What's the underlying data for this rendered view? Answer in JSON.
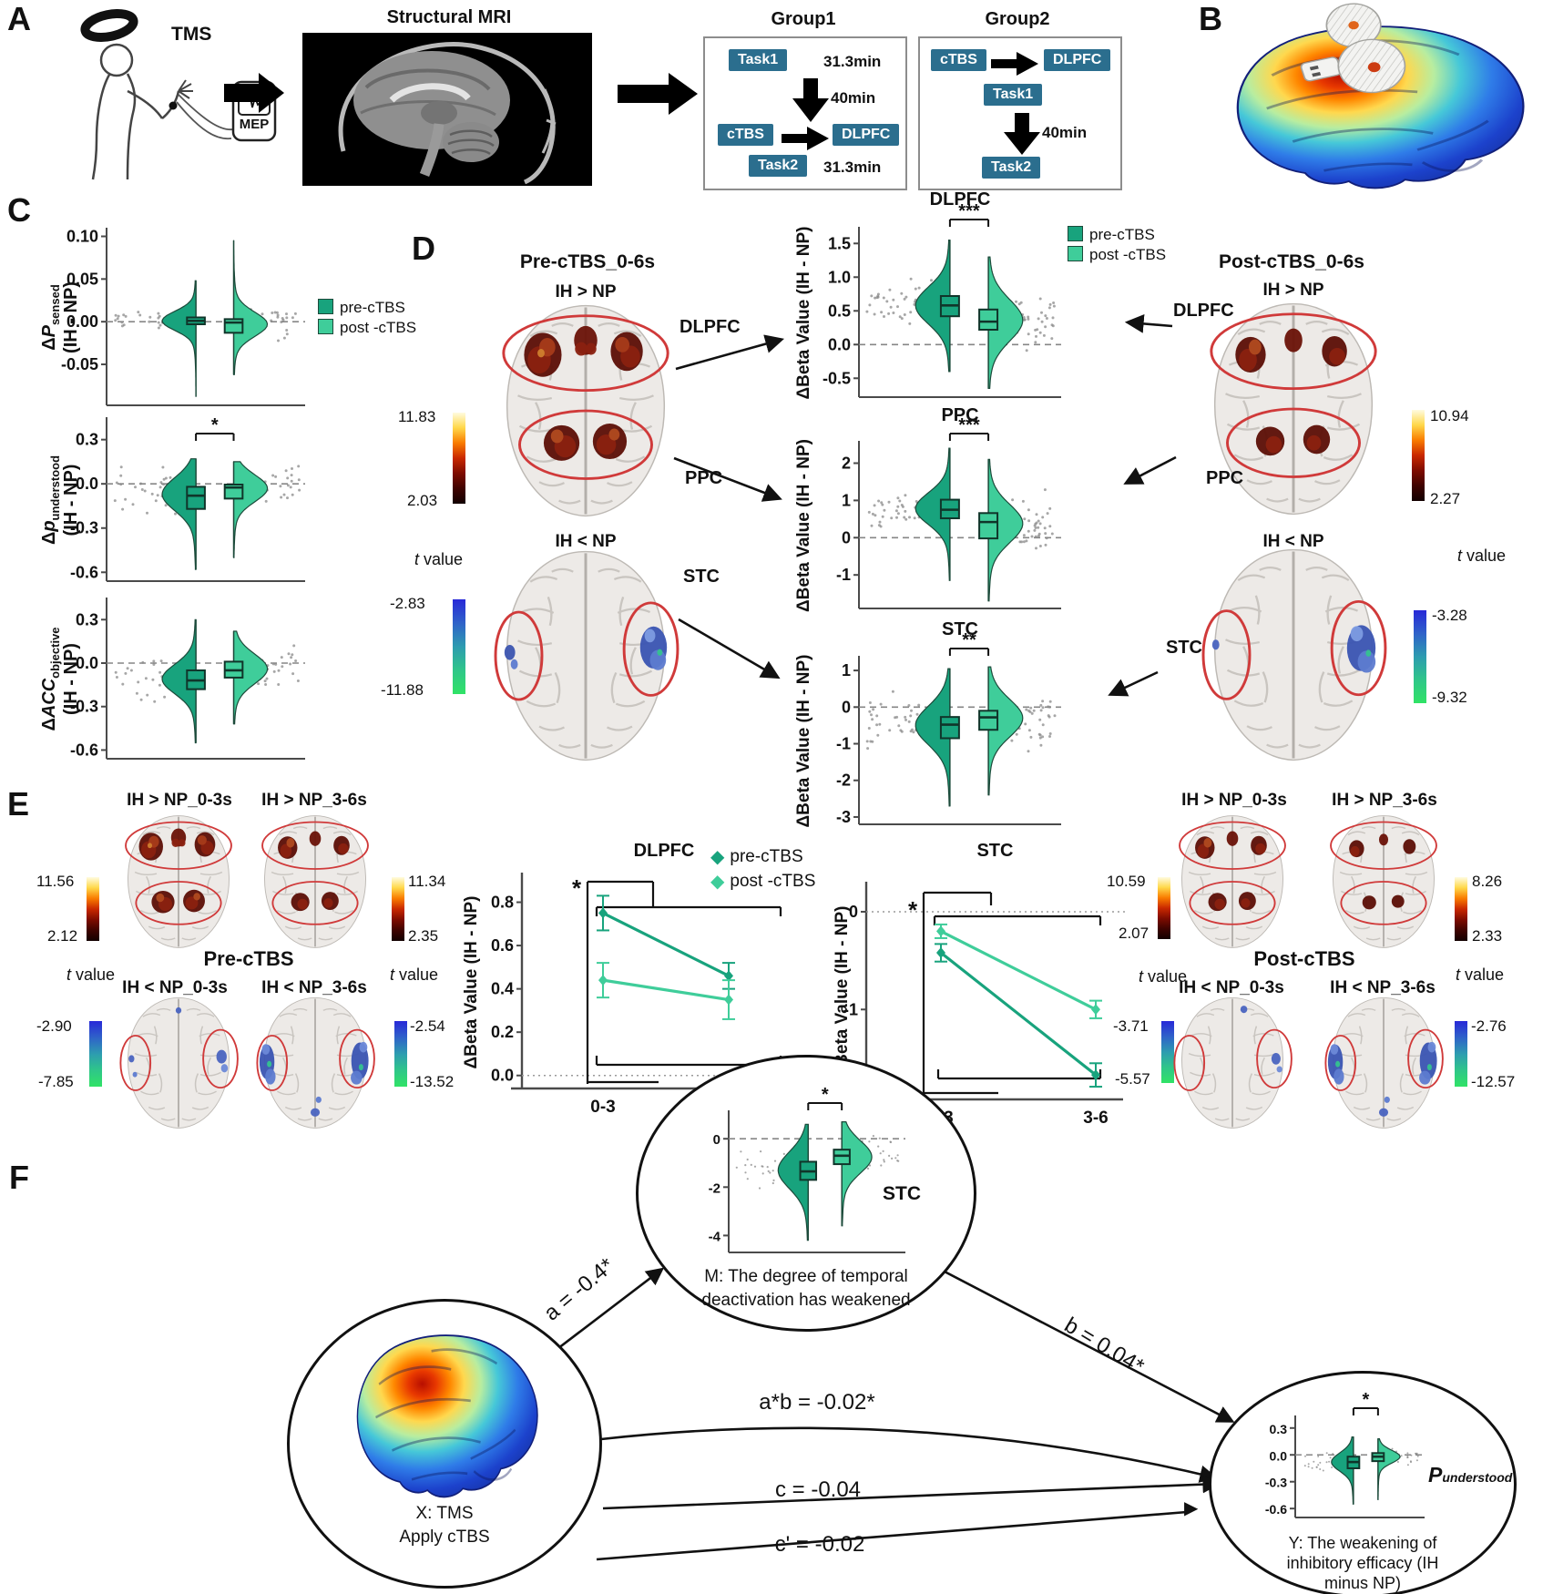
{
  "colors": {
    "pre": "#18a37d",
    "post": "#3fcd9a",
    "teal": "#2b6e8e",
    "hot_low": "#2b0000",
    "hot_high": "#fffbe0",
    "cool_low": "#30e366",
    "cool_high": "#2829d8",
    "red_circle": "#d03a3a"
  },
  "tvalue": {
    "t": "t",
    "rest": "value"
  },
  "legend": {
    "pre": "pre-cTBS",
    "post": "post -cTBS"
  },
  "panel_a": {
    "label": "A",
    "tms": "TMS",
    "mep": "MEP",
    "mri_title": "Structural MRI",
    "group1": {
      "title": "Group1",
      "task1": "Task1",
      "task1_duration": "31.3min",
      "interval": "40min",
      "ctbs": "cTBS",
      "target": "DLPFC",
      "task2": "Task2",
      "task2_duration": "31.3min"
    },
    "group2": {
      "title": "Group2",
      "ctbs": "cTBS",
      "target": "DLPFC",
      "task1": "Task1",
      "interval": "40min",
      "task2": "Task2"
    }
  },
  "panel_b": {
    "label": "B"
  },
  "panel_c": {
    "label": "C"
  },
  "panel_d": {
    "label": "D",
    "pre_title": "Pre-cTBS_0-6s",
    "post_title": "Post-cTBS_0-6s",
    "pos_contrast": "IH > NP",
    "neg_contrast": "IH < NP",
    "dlpfc": "DLPFC",
    "ppc": "PPC",
    "stc": "STC",
    "cb": {
      "pre_hot": {
        "max": "11.83",
        "min": "2.03"
      },
      "pre_cool": {
        "max": "-2.83",
        "min": "-11.88"
      },
      "post_hot": {
        "max": "10.94",
        "min": "2.27"
      },
      "post_cool": {
        "max": "-3.28",
        "min": "-9.32"
      }
    }
  },
  "panel_e": {
    "label": "E",
    "pre_title": "Pre-cTBS",
    "post_title": "Post-cTBS",
    "pos_early": "IH > NP_0-3s",
    "pos_late": "IH > NP_3-6s",
    "neg_early": "IH < NP_0-3s",
    "neg_late": "IH < NP_3-6s",
    "cb": {
      "e1": {
        "max": "11.56",
        "min": "2.12"
      },
      "e2": {
        "max": "11.34",
        "min": "2.35"
      },
      "e3": {
        "max": "-2.90",
        "min": "-7.85"
      },
      "e4": {
        "max": "-2.54",
        "min": "-13.52"
      },
      "m1": {
        "max": "10.59",
        "min": "2.07"
      },
      "m2": {
        "max": "-3.71",
        "min": "-5.57"
      },
      "r1": {
        "max": "8.26",
        "min": "2.33"
      },
      "r2": {
        "max": "-2.76",
        "min": "-12.57"
      }
    }
  },
  "panel_f": {
    "label": "F",
    "x_caption_1": "X: TMS",
    "x_caption_2": "Apply cTBS",
    "m_caption_1": "M: The degree of temporal",
    "m_caption_2": "deactivation has weakened",
    "m_region": "STC",
    "y_caption_1": "Y: The weakening of",
    "y_caption_2": "inhibitory efficacy (IH",
    "y_caption_3": "minus NP)",
    "y_var": "P",
    "y_var_sub": "understood",
    "paths": {
      "a": "a = -0.4*",
      "b": "b = 0.04*",
      "ab": "a*b = -0.02*",
      "c": "c = -0.04",
      "cprime": "c' = -0.02",
      "cprime_head": "▶"
    }
  },
  "chart_data": [
    {
      "id": "c1",
      "type": "violin",
      "title": "",
      "sig": "",
      "ylabel": {
        "l1": [
          {
            "t": "Δ"
          },
          {
            "t": "P",
            "i": true
          }
        ],
        "sub": "sensed",
        "l2": "(IH - NP)"
      },
      "ylim": [
        -0.098,
        0.108
      ],
      "yticks": [
        {
          "v": 0.1,
          "t": "0.10"
        },
        {
          "v": 0.05,
          "t": "0.05"
        },
        {
          "v": 0.0,
          "t": "0.00"
        },
        {
          "v": -0.05,
          "t": "-0.05"
        }
      ],
      "groups": {
        "pre": {
          "mean": 0.001,
          "sd": 0.011,
          "q1": -0.003,
          "q3": 0.005,
          "median": 0.001,
          "tail": [
            -0.088,
            0.048
          ]
        },
        "post": {
          "mean": -0.003,
          "sd": 0.014,
          "q1": -0.013,
          "q3": 0.003,
          "median": -0.001,
          "tail": [
            -0.062,
            0.095
          ]
        }
      }
    },
    {
      "id": "c2",
      "type": "violin",
      "title": "",
      "sig": "*",
      "ylabel": {
        "l1": [
          {
            "t": "Δ"
          },
          {
            "t": "p",
            "i": true
          }
        ],
        "sub": "understood",
        "l2": "(IH - NP)"
      },
      "ylim": [
        -0.66,
        0.44
      ],
      "yticks": [
        {
          "v": 0.3,
          "t": "0.3"
        },
        {
          "v": 0.0,
          "t": "0.0"
        },
        {
          "v": -0.3,
          "t": "-0.3"
        },
        {
          "v": -0.6,
          "t": "-0.6"
        }
      ],
      "groups": {
        "pre": {
          "mean": -0.07,
          "sd": 0.11,
          "q1": -0.17,
          "q3": -0.02,
          "median": -0.08,
          "tail": [
            -0.58,
            0.17
          ]
        },
        "post": {
          "mean": -0.03,
          "sd": 0.09,
          "q1": -0.1,
          "q3": -0.005,
          "median": -0.025,
          "tail": [
            -0.5,
            0.15
          ]
        }
      }
    },
    {
      "id": "c3",
      "type": "violin",
      "title": "",
      "sig": "",
      "ylabel": {
        "l1": [
          {
            "t": "Δ"
          },
          {
            "t": "ACC",
            "i": true
          }
        ],
        "sub": "objective",
        "l2": "(IH - NP)"
      },
      "ylim": [
        -0.66,
        0.44
      ],
      "yticks": [
        {
          "v": 0.3,
          "t": "0.3"
        },
        {
          "v": 0.0,
          "t": "0.0"
        },
        {
          "v": -0.3,
          "t": "-0.3"
        },
        {
          "v": -0.6,
          "t": "-0.6"
        }
      ],
      "groups": {
        "pre": {
          "mean": -0.11,
          "sd": 0.1,
          "q1": -0.18,
          "q3": -0.05,
          "median": -0.12,
          "tail": [
            -0.55,
            0.3
          ]
        },
        "post": {
          "mean": -0.04,
          "sd": 0.1,
          "q1": -0.1,
          "q3": 0.01,
          "median": -0.05,
          "tail": [
            -0.42,
            0.22
          ]
        }
      }
    },
    {
      "id": "d1",
      "type": "violin",
      "title": "DLPFC",
      "sig": "***",
      "ylabel": {
        "simple": "ΔBeta Value (IH - NP)"
      },
      "ylim": [
        -0.78,
        1.72
      ],
      "yticks": [
        {
          "v": 1.5,
          "t": "1.5"
        },
        {
          "v": 1.0,
          "t": "1.0"
        },
        {
          "v": 0.5,
          "t": "0.5"
        },
        {
          "v": 0.0,
          "t": "0.0"
        },
        {
          "v": -0.5,
          "t": "-0.5"
        }
      ],
      "groups": {
        "pre": {
          "mean": 0.58,
          "sd": 0.27,
          "q1": 0.42,
          "q3": 0.72,
          "median": 0.58,
          "tail": [
            -0.4,
            1.55
          ]
        },
        "post": {
          "mean": 0.36,
          "sd": 0.3,
          "q1": 0.22,
          "q3": 0.52,
          "median": 0.34,
          "tail": [
            -0.65,
            1.3
          ]
        }
      }
    },
    {
      "id": "d2",
      "type": "violin",
      "title": "PPC",
      "sig": "***",
      "ylabel": {
        "simple": "ΔBeta Value (IH - NP)"
      },
      "ylim": [
        -1.9,
        2.55
      ],
      "yticks": [
        {
          "v": 2,
          "t": "2"
        },
        {
          "v": 1,
          "t": "1"
        },
        {
          "v": 0,
          "t": "0"
        },
        {
          "v": -1,
          "t": "-1"
        }
      ],
      "groups": {
        "pre": {
          "mean": 0.78,
          "sd": 0.42,
          "q1": 0.52,
          "q3": 1.02,
          "median": 0.75,
          "tail": [
            -1.15,
            2.4
          ]
        },
        "post": {
          "mean": 0.38,
          "sd": 0.5,
          "q1": -0.02,
          "q3": 0.66,
          "median": 0.42,
          "tail": [
            -1.7,
            2.1
          ]
        }
      }
    },
    {
      "id": "d3",
      "type": "violin",
      "title": "STC",
      "sig": "**",
      "ylabel": {
        "simple": "ΔBeta Value (IH - NP)"
      },
      "ylim": [
        -3.2,
        1.35
      ],
      "yticks": [
        {
          "v": 1,
          "t": "1"
        },
        {
          "v": 0,
          "t": "0"
        },
        {
          "v": -1,
          "t": "-1"
        },
        {
          "v": -2,
          "t": "-2"
        },
        {
          "v": -3,
          "t": "-3"
        }
      ],
      "groups": {
        "pre": {
          "mean": -0.5,
          "sd": 0.52,
          "q1": -0.85,
          "q3": -0.27,
          "median": -0.48,
          "tail": [
            -2.7,
            1.05
          ]
        },
        "post": {
          "mean": -0.3,
          "sd": 0.5,
          "q1": -0.62,
          "q3": -0.1,
          "median": -0.28,
          "tail": [
            -2.4,
            1.1
          ]
        }
      }
    },
    {
      "id": "le1",
      "type": "line",
      "title": "DLPFC",
      "sig": "*",
      "ylabel": "ΔBeta Value (IH - NP)",
      "categories": [
        "0-3",
        "3-6"
      ],
      "ylim": [
        -0.06,
        0.92
      ],
      "yticks": [
        {
          "v": 0.8,
          "t": "0.8"
        },
        {
          "v": 0.6,
          "t": "0.6"
        },
        {
          "v": 0.4,
          "t": "0.4"
        },
        {
          "v": 0.2,
          "t": "0.2"
        },
        {
          "v": 0.0,
          "t": "0.0"
        }
      ],
      "series": [
        {
          "key": "pre",
          "name": "pre-cTBS",
          "values": [
            0.75,
            0.46
          ],
          "errors": [
            0.08,
            0.06
          ]
        },
        {
          "key": "post",
          "name": "post -cTBS",
          "values": [
            0.44,
            0.35
          ],
          "errors": [
            0.08,
            0.09
          ]
        }
      ]
    },
    {
      "id": "le2",
      "type": "line",
      "title": "STC",
      "sig": "*",
      "ylabel": "ΔBeta Value (IH - NP)",
      "categories": [
        "0-3",
        "3-6"
      ],
      "ylim": [
        -1.92,
        0.27
      ],
      "yticks": [
        {
          "v": 0,
          "t": "0"
        },
        {
          "v": -1,
          "t": "-1"
        }
      ],
      "series": [
        {
          "key": "pre",
          "name": "pre-cTBS",
          "values": [
            -0.42,
            -1.67
          ],
          "errors": [
            0.09,
            0.12
          ]
        },
        {
          "key": "post",
          "name": "post -cTBS",
          "values": [
            -0.2,
            -1.0
          ],
          "errors": [
            0.07,
            0.09
          ]
        }
      ]
    },
    {
      "id": "fm",
      "type": "violin",
      "title": "",
      "sig": "*",
      "ylim": [
        -4.7,
        1.1
      ],
      "yticks": [
        {
          "v": 0,
          "t": "0"
        },
        {
          "v": -2,
          "t": "-2"
        },
        {
          "v": -4,
          "t": "-4"
        }
      ],
      "groups": {
        "pre": {
          "mean": -1.3,
          "sd": 0.75,
          "q1": -1.7,
          "q3": -0.95,
          "median": -1.35,
          "tail": [
            -4.2,
            0.6
          ]
        },
        "post": {
          "mean": -0.75,
          "sd": 0.65,
          "q1": -1.05,
          "q3": -0.45,
          "median": -0.7,
          "tail": [
            -3.6,
            0.7
          ]
        }
      }
    },
    {
      "id": "fy",
      "type": "violin",
      "title": "",
      "sig": "*",
      "ylim": [
        -0.7,
        0.42
      ],
      "yticks": [
        {
          "v": 0.3,
          "t": "0.3"
        },
        {
          "v": 0.0,
          "t": "0.0"
        },
        {
          "v": -0.3,
          "t": "-0.3"
        },
        {
          "v": -0.6,
          "t": "-0.6"
        }
      ],
      "groups": {
        "pre": {
          "mean": -0.08,
          "sd": 0.1,
          "q1": -0.15,
          "q3": -0.02,
          "median": -0.08,
          "tail": [
            -0.55,
            0.2
          ]
        },
        "post": {
          "mean": -0.02,
          "sd": 0.07,
          "q1": -0.07,
          "q3": 0.02,
          "median": -0.02,
          "tail": [
            -0.5,
            0.18
          ]
        }
      }
    }
  ]
}
